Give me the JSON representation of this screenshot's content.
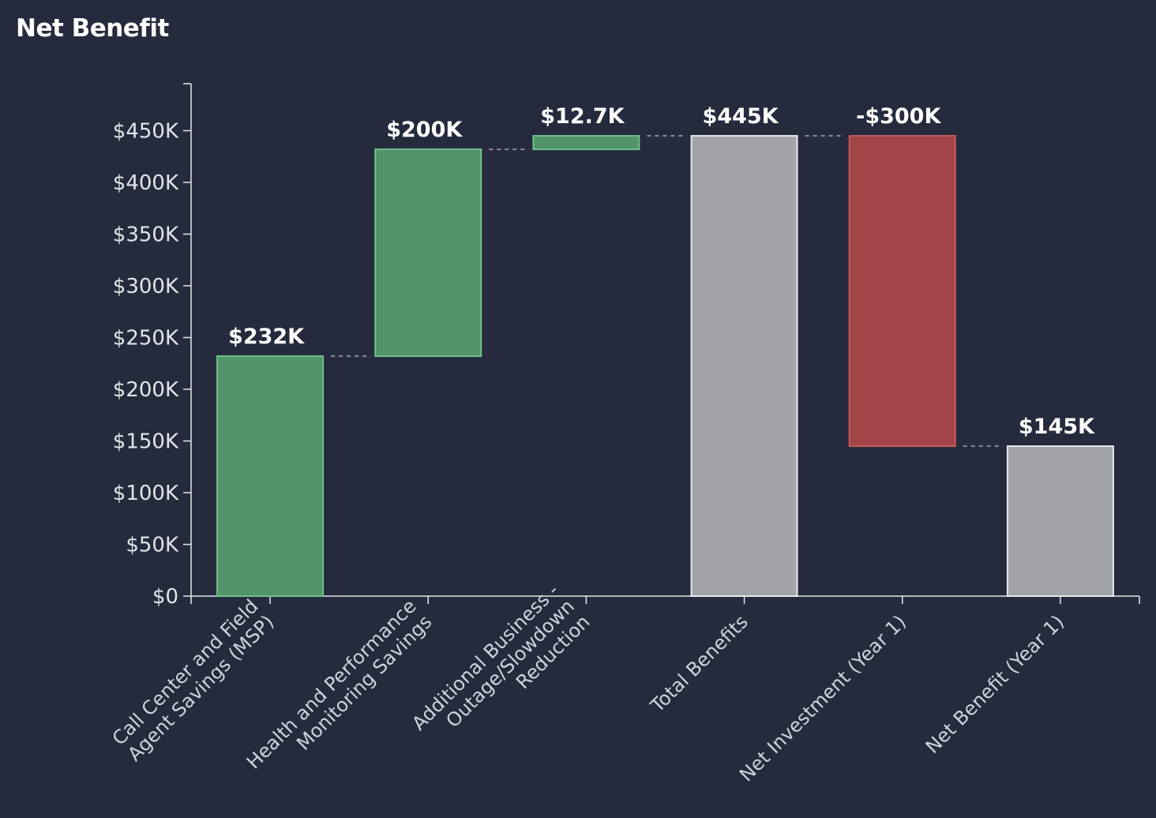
{
  "chart_data": {
    "type": "bar",
    "subtype": "waterfall",
    "title": "Net Benefit",
    "xlabel": "",
    "ylabel": "",
    "ylim": [
      0,
      495000
    ],
    "yticks": [
      {
        "value": 0,
        "label": "$0"
      },
      {
        "value": 50000,
        "label": "$50K"
      },
      {
        "value": 100000,
        "label": "$100K"
      },
      {
        "value": 150000,
        "label": "$150K"
      },
      {
        "value": 200000,
        "label": "$200K"
      },
      {
        "value": 250000,
        "label": "$250K"
      },
      {
        "value": 300000,
        "label": "$300K"
      },
      {
        "value": 350000,
        "label": "$350K"
      },
      {
        "value": 400000,
        "label": "$400K"
      },
      {
        "value": 450000,
        "label": "$450K"
      }
    ],
    "grid": false,
    "categories": [
      [
        "Call Center and Field",
        "Agent Savings (MSP)"
      ],
      [
        "Health and Performance",
        "Monitoring Savings"
      ],
      [
        "Additional Business -",
        "Outage/Slowdown",
        "Reduction"
      ],
      [
        "Total Benefits"
      ],
      [
        "Net Investment (Year 1)"
      ],
      [
        "Net Benefit (Year 1)"
      ]
    ],
    "bars": [
      {
        "start": 0,
        "end": 232000,
        "label": "$232K",
        "kind": "increase"
      },
      {
        "start": 232000,
        "end": 432000,
        "label": "$200K",
        "kind": "increase"
      },
      {
        "start": 432000,
        "end": 445000,
        "label": "$12.7K",
        "kind": "increase"
      },
      {
        "start": 0,
        "end": 445000,
        "label": "$445K",
        "kind": "total"
      },
      {
        "start": 445000,
        "end": 145000,
        "label": "-$300K",
        "kind": "decrease"
      },
      {
        "start": 0,
        "end": 145000,
        "label": "$145K",
        "kind": "total"
      }
    ],
    "colors": {
      "increase_fill": "#52936a",
      "increase_stroke": "#6fc28c",
      "decrease_fill": "#a04447",
      "decrease_stroke": "#c85a5e",
      "total_fill": "#a3a4aa",
      "total_stroke": "#e6e7ec",
      "axis": "#e8e8ee",
      "connector": "#8a8d9a"
    }
  }
}
